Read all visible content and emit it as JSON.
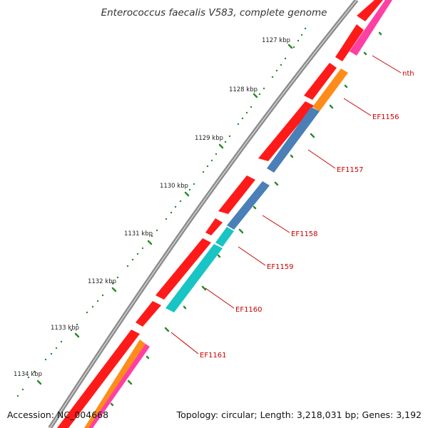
{
  "title": "Enterococcus faecalis V583, complete genome",
  "footer": {
    "accession": "Accession: NC_004668",
    "topology": "Topology: circular; Length: 3,218,031 bp; Genes: 3,192"
  },
  "ticks": [
    "1127 kbp",
    "1128 kbp",
    "1129 kbp",
    "1130 kbp",
    "1131 kbp",
    "1132 kbp",
    "1133 kbp",
    "1134 kbp"
  ],
  "genes": [
    "nth",
    "EF1156",
    "EF1157",
    "EF1158",
    "EF1159",
    "EF1160",
    "EF1161"
  ],
  "colors": {
    "backbone": "#888888",
    "orf": "#ff1a1a",
    "gene_magenta": "#ff3fa3",
    "gene_orange": "#ff8c1a",
    "gene_steelblue": "#4a7fb8",
    "gene_cyan": "#19c4c4",
    "tick": "#2a8a2a",
    "label": "#cc0000"
  }
}
